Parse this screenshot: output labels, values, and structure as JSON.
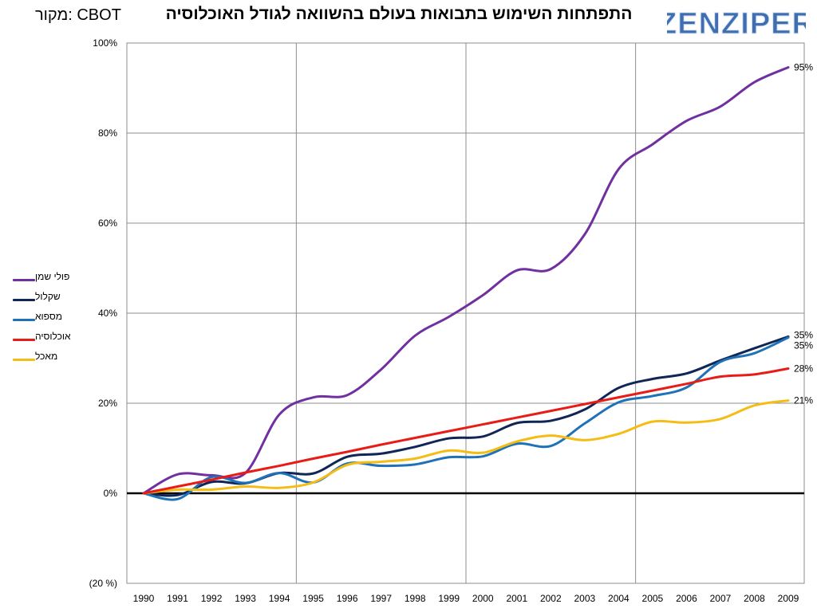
{
  "header": {
    "title": "התפתחות השימוש בתבואות בעולם בהשוואה לגודל האוכלוסיה",
    "source": "מקור: CBOT",
    "logo_text": "ZENZIPER"
  },
  "colors": {
    "logo": "#3f6fb0",
    "grid": "#8c8c8c",
    "zero_line": "#000000"
  },
  "chart_data": {
    "type": "line",
    "title": "התפתחות השימוש בתבואות בעולם בהשוואה לגודל האוכלוסיה",
    "x": [
      "1990",
      "1991",
      "1992",
      "1993",
      "1994",
      "1995",
      "1996",
      "1997",
      "1998",
      "1999",
      "2000",
      "2001",
      "2002",
      "2003",
      "2004",
      "2005",
      "2006",
      "2007",
      "2008",
      "2009"
    ],
    "ylim": [
      -20,
      100
    ],
    "y_ticks": [
      {
        "value": 100,
        "label": "100%"
      },
      {
        "value": 80,
        "label": "80%"
      },
      {
        "value": 60,
        "label": "60%"
      },
      {
        "value": 40,
        "label": "40%"
      },
      {
        "value": 20,
        "label": "20%"
      },
      {
        "value": 0,
        "label": "0%"
      },
      {
        "value": -20,
        "label": "(20 %)"
      }
    ],
    "vertical_gridlines_at": [
      "1994.5",
      "1999.5",
      "2004.5"
    ],
    "grid": true,
    "legend_position": "left",
    "series": [
      {
        "name": "פולי שמן",
        "color": "#7030a0",
        "end_label": "95%",
        "values": [
          0,
          4.2,
          4,
          4.5,
          17.5,
          21.3,
          21.8,
          27.5,
          35,
          39.2,
          44,
          49.5,
          49.8,
          57.5,
          72,
          77.5,
          82.7,
          85.9,
          91.3,
          94.6
        ]
      },
      {
        "name": "שקלול",
        "color": "#0f2656",
        "end_label": "35%",
        "values": [
          0,
          -0.4,
          2.5,
          2.2,
          4.5,
          4.4,
          8.1,
          8.8,
          10.3,
          12.2,
          12.6,
          15.6,
          16.1,
          18.6,
          23.4,
          25.4,
          26.6,
          29.5,
          32.2,
          34.8
        ]
      },
      {
        "name": "מספוא",
        "color": "#1f72b8",
        "end_label": "35%",
        "values": [
          0,
          -1.3,
          3.6,
          2.3,
          4.5,
          2.4,
          6.6,
          6.1,
          6.4,
          8,
          8.2,
          11,
          10.5,
          15.5,
          20.2,
          21.6,
          23.5,
          29.2,
          31.1,
          34.6
        ]
      },
      {
        "name": "אוכלוסיה",
        "color": "#e81b16",
        "end_label": "28%",
        "values": [
          0,
          1.5,
          3,
          4.6,
          6.1,
          7.7,
          9.2,
          10.8,
          12.3,
          13.8,
          15.3,
          16.8,
          18.3,
          19.8,
          21.3,
          22.8,
          24.3,
          25.9,
          26.4,
          27.7
        ]
      },
      {
        "name": "מאכל",
        "color": "#f5bc14",
        "end_label": "21%",
        "values": [
          0,
          0.8,
          0.8,
          1.5,
          1.2,
          2.4,
          6.3,
          7,
          7.7,
          9.5,
          9,
          11.5,
          12.8,
          11.8,
          13.2,
          15.9,
          15.7,
          16.5,
          19.5,
          20.6
        ]
      }
    ]
  }
}
